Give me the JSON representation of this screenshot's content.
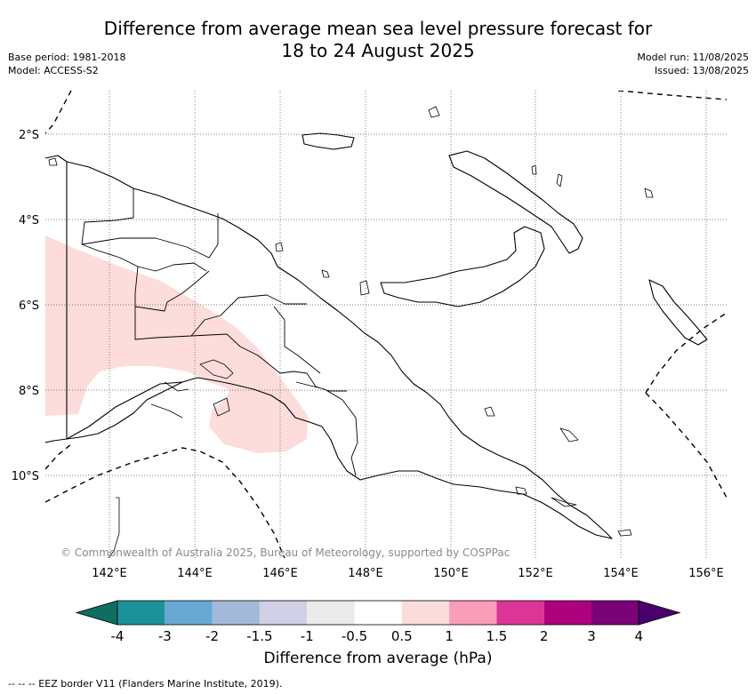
{
  "title_line1": "Difference from average mean sea level pressure forecast for",
  "title_line2": "18 to 24 August 2025",
  "base_period": "Base period: 1981-2018",
  "model": "Model: ACCESS-S2",
  "model_run": "Model run: 11/08/2025",
  "issued": "Issued: 13/08/2025",
  "copyright": "© Commonwealth of Australia 2025, Bureau of Meteorology, supported by COSPPac",
  "lat_labels": [
    "2°S",
    "4°S",
    "6°S",
    "8°S",
    "10°S"
  ],
  "lon_labels": [
    "142°E",
    "144°E",
    "146°E",
    "148°E",
    "150°E",
    "152°E",
    "154°E",
    "156°E"
  ],
  "colorbar": {
    "title": "Difference from average (hPa)",
    "tick_labels": [
      "-4",
      "-3",
      "-2",
      "-1.5",
      "-1",
      "-0.5",
      "0.5",
      "1",
      "1.5",
      "2",
      "3",
      "4"
    ],
    "colors": [
      "#0e6e63",
      "#1b9199",
      "#67a9d3",
      "#a4b9da",
      "#d0cfe6",
      "#ebebeb",
      "#ffffff",
      "#fddcdc",
      "#f99db8",
      "#dc3597",
      "#ae017e",
      "#7a0177",
      "#49006a"
    ]
  },
  "anomaly_fill_color": "#fddcdc",
  "eez_note": "--  --  -- EEZ border V11 (Flanders Marine Institute, 2019)."
}
